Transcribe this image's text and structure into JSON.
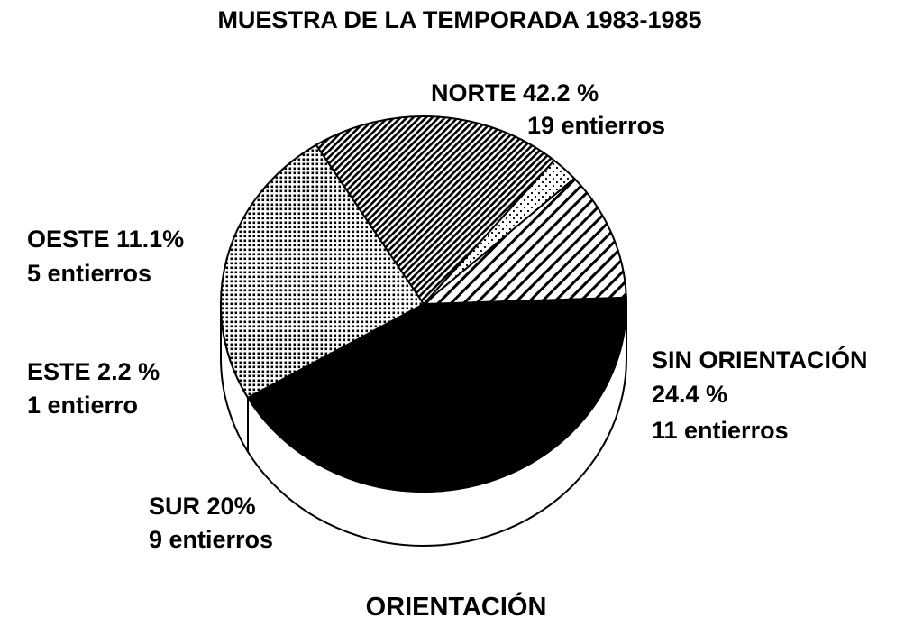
{
  "chart_data": {
    "type": "pie",
    "title": "MUESTRA DE LA TEMPORADA 1983-1985",
    "subtitle": "ORIENTACIÓN",
    "slices": [
      {
        "label": "NORTE",
        "percent": 42.2,
        "percent_text": "42.2 %",
        "count_text": "19 entierros",
        "value": 19,
        "pattern": "solid-black"
      },
      {
        "label": "SIN ORIENTACIÓN",
        "percent": 24.4,
        "percent_text": "24.4 %",
        "count_text": "11 entierros",
        "value": 11,
        "pattern": "dots"
      },
      {
        "label": "SUR",
        "percent": 20,
        "percent_text": "20%",
        "count_text": "9 entierros",
        "value": 9,
        "pattern": "dense-diagonal-hatch"
      },
      {
        "label": "ESTE",
        "percent": 2.2,
        "percent_text": "2.2 %",
        "count_text": "1 entierro",
        "value": 1,
        "pattern": "light-dots"
      },
      {
        "label": "OESTE",
        "percent": 11.1,
        "percent_text": "11.1%",
        "count_text": "5 entierros",
        "value": 5,
        "pattern": "sparse-diagonal-hatch"
      }
    ],
    "style": "3d-tilted-pie",
    "legend": "none"
  }
}
